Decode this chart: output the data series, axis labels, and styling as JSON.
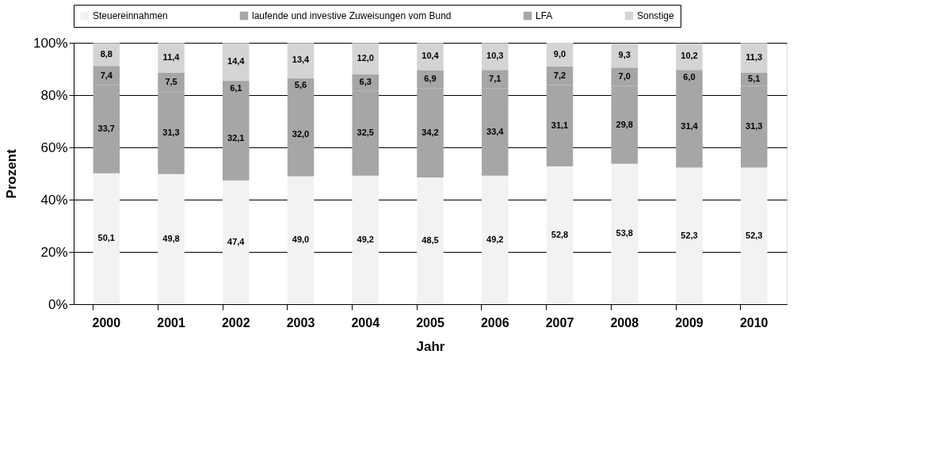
{
  "chart_data": {
    "type": "bar",
    "stacked": true,
    "xlabel": "Jahr",
    "ylabel": "Prozent",
    "categories": [
      "2000",
      "2001",
      "2002",
      "2003",
      "2004",
      "2005",
      "2006",
      "2007",
      "2008",
      "2009",
      "2010"
    ],
    "series": [
      {
        "name": "Steuereinnahmen",
        "color": "#f2f2f2",
        "values": [
          50.1,
          49.8,
          47.4,
          49.0,
          49.2,
          48.5,
          49.2,
          52.8,
          53.8,
          52.3,
          52.3
        ],
        "value_labels": [
          "50,1",
          "49,8",
          "47,4",
          "49,0",
          "49,2",
          "48,5",
          "49,2",
          "52,8",
          "53,8",
          "52,3",
          "52,3"
        ]
      },
      {
        "name": "laufende und investive Zuweisungen vom Bund",
        "color": "#a6a6a6",
        "values": [
          33.7,
          31.3,
          32.1,
          32.0,
          32.5,
          34.2,
          33.4,
          31.1,
          29.8,
          31.4,
          31.3
        ],
        "value_labels": [
          "33,7",
          "31,3",
          "32,1",
          "32,0",
          "32,5",
          "34,2",
          "33,4",
          "31,1",
          "29,8",
          "31,4",
          "31,3"
        ]
      },
      {
        "name": "LFA",
        "color": "#a6a6a6",
        "values": [
          7.4,
          7.5,
          6.1,
          5.6,
          6.3,
          6.9,
          7.1,
          7.2,
          7.0,
          6.0,
          5.1
        ],
        "value_labels": [
          "7,4",
          "7,5",
          "6,1",
          "5,6",
          "6,3",
          "6,9",
          "7,1",
          "7,2",
          "7,0",
          "6,0",
          "5,1"
        ]
      },
      {
        "name": "Sonstige",
        "color": "#d4d4d4",
        "values": [
          8.8,
          11.4,
          14.4,
          13.4,
          12.0,
          10.4,
          10.3,
          9.0,
          9.3,
          10.2,
          11.3
        ],
        "value_labels": [
          "8,8",
          "11,4",
          "14,4",
          "13,4",
          "12,0",
          "10,4",
          "10,3",
          "9,0",
          "9,3",
          "10,2",
          "11,3"
        ]
      }
    ],
    "ylim": [
      0,
      100.1
    ],
    "yticks": [
      {
        "value": 0,
        "label": "0%"
      },
      {
        "value": 20,
        "label": "20%"
      },
      {
        "value": 40,
        "label": "40%"
      },
      {
        "value": 60,
        "label": "60%"
      },
      {
        "value": 80,
        "label": "80%"
      },
      {
        "value": 100,
        "label": "100%"
      }
    ],
    "grid": "y",
    "legend": "top"
  }
}
